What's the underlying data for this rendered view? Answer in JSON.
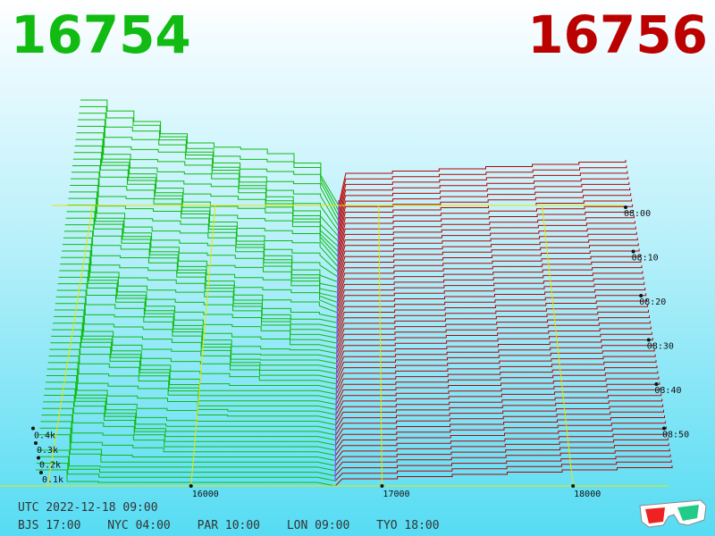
{
  "header": {
    "bid_price": "16754",
    "ask_price": "16756"
  },
  "colors": {
    "bid": "#11bb11",
    "ask": "#bb0000",
    "grid": "#e6e600",
    "midline": "#7a55ff"
  },
  "footer": {
    "utc": "UTC 2022-12-18 09:00",
    "zones": [
      "BJS 17:00",
      "NYC 04:00",
      "PAR 10:00",
      "LON 09:00",
      "TYO 18:00"
    ]
  },
  "chart_data": {
    "type": "area",
    "x_tick_labels": [
      "16000",
      "17000",
      "18000"
    ],
    "x_ticks": [
      16000,
      17000,
      18000
    ],
    "y_tick_labels": [
      "0.1k",
      "0.2k",
      "0.3k",
      "0.4k"
    ],
    "y_ticks": [
      100,
      200,
      300,
      400
    ],
    "time_tick_labels": [
      "08:00",
      "08:10",
      "08:20",
      "08:30",
      "08:40",
      "08:50"
    ],
    "x_range": [
      15000,
      18500
    ],
    "mid_price": 16755,
    "bid_series": {
      "name": "bid",
      "color": "#11bb11"
    },
    "ask_series": {
      "name": "ask",
      "color": "#bb0000"
    }
  },
  "icons": {
    "glasses": "3d-glasses-icon"
  }
}
